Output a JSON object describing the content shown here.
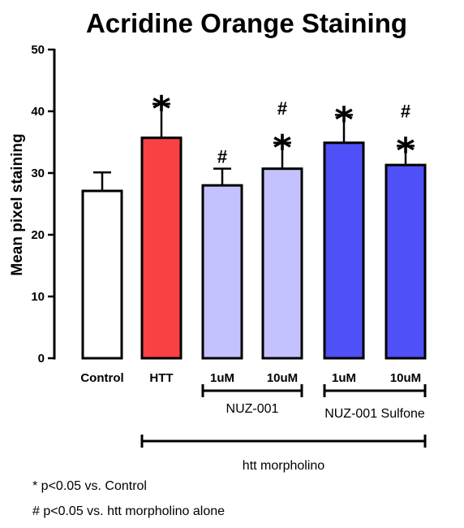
{
  "chart_data": {
    "type": "bar",
    "title": "Acridine Orange Staining",
    "ylabel": "Mean pixel staining",
    "xlabel": "",
    "ylim": [
      0,
      50
    ],
    "yticks": [
      "0",
      "10",
      "20",
      "30",
      "40",
      "50"
    ],
    "grid": false,
    "categories": [
      "Control",
      "HTT",
      "1uM",
      "10uM",
      "1uM",
      "10uM"
    ],
    "values": [
      27.1,
      35.7,
      28.0,
      30.7,
      34.9,
      31.3
    ],
    "errors": [
      3.0,
      5.5,
      2.7,
      4.2,
      4.5,
      3.1
    ],
    "colors": [
      "#ffffff",
      "#f94144",
      "#c4c2fe",
      "#c4c2fe",
      "#5050f8",
      "#5050f8"
    ],
    "significance": [
      [],
      [
        "*"
      ],
      [
        "#"
      ],
      [
        "*",
        "#"
      ],
      [
        "*"
      ],
      [
        "*",
        "#"
      ]
    ],
    "groups": [
      {
        "label": "NUZ-001",
        "from": 2,
        "to": 3
      },
      {
        "label": "NUZ-001 Sulfone",
        "from": 4,
        "to": 5
      },
      {
        "label": "htt morpholino",
        "from": 1,
        "to": 5
      }
    ]
  },
  "footnotes": [
    "* p<0.05 vs. Control",
    "# p<0.05 vs. htt morpholino alone"
  ]
}
